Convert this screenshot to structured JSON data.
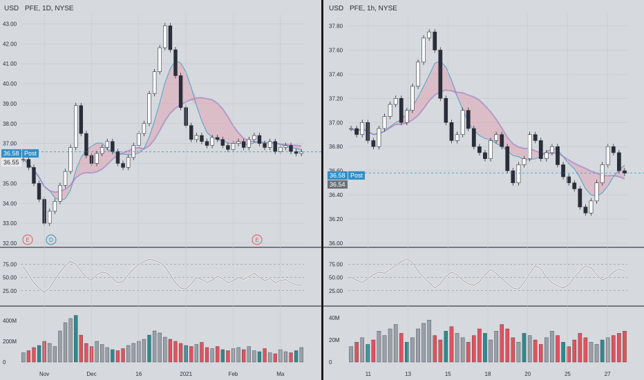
{
  "left": {
    "currency": "USD",
    "symbol": "PFE, 1D, NYSE",
    "price_tags": [
      {
        "text": "36.58",
        "kind": "blue"
      },
      {
        "text": "Post",
        "kind": "blue"
      },
      {
        "text": "36.55",
        "kind": "plain"
      }
    ],
    "x_ticks": [
      "Nov",
      "Dec",
      "16",
      "2021",
      "Feb",
      "Ma"
    ],
    "markers": [
      "E",
      "D",
      "E"
    ]
  },
  "right": {
    "currency": "USD",
    "symbol": "PFE, 1h, NYSE",
    "price_tags": [
      {
        "text": "36.58",
        "kind": "blue"
      },
      {
        "text": "Post",
        "kind": "blue"
      },
      {
        "text": "36.54",
        "kind": "gray"
      }
    ],
    "x_ticks": [
      "11",
      "13",
      "15",
      "18",
      "20",
      "25",
      "27"
    ]
  },
  "chart_data": [
    {
      "type": "candlestick",
      "title": "PFE, 1D, NYSE",
      "ylim": [
        32,
        43.5
      ],
      "y_ticks": [
        "43.00",
        "42.00",
        "41.00",
        "40.00",
        "39.00",
        "38.00",
        "37.00",
        "36.00",
        "35.00",
        "34.00",
        "33.00",
        "32.00"
      ],
      "closes": [
        36.2,
        35.8,
        35.0,
        34.2,
        33.0,
        33.6,
        34.1,
        34.9,
        35.6,
        36.8,
        38.9,
        37.5,
        36.4,
        36.0,
        36.5,
        36.8,
        37.1,
        36.6,
        36.0,
        35.8,
        36.3,
        36.9,
        37.5,
        38.0,
        39.5,
        40.6,
        41.8,
        42.9,
        41.7,
        40.4,
        38.8,
        37.9,
        37.2,
        37.4,
        37.1,
        36.9,
        37.3,
        37.2,
        36.9,
        36.7,
        37.0,
        37.1,
        36.8,
        37.2,
        37.4,
        37.0,
        36.8,
        37.1,
        36.6,
        36.8,
        36.9,
        36.6,
        36.5,
        36.58
      ],
      "oscillator": {
        "y_ticks": [
          "75.00",
          "50.00",
          "25.00"
        ],
        "ylim": [
          0,
          100
        ],
        "values": [
          70,
          55,
          40,
          30,
          22,
          30,
          45,
          60,
          72,
          80,
          75,
          62,
          50,
          45,
          55,
          60,
          58,
          48,
          40,
          42,
          55,
          66,
          74,
          80,
          84,
          82,
          78,
          70,
          55,
          40,
          30,
          28,
          38,
          50,
          46,
          40,
          45,
          52,
          48,
          40,
          44,
          50,
          46,
          52,
          58,
          50,
          44,
          48,
          40,
          44,
          46,
          40,
          36,
          35
        ]
      },
      "volume": {
        "y_ticks": [
          "400M",
          "200M",
          "0"
        ],
        "ylim": [
          0,
          480
        ],
        "values": [
          90,
          110,
          140,
          160,
          200,
          180,
          150,
          300,
          380,
          420,
          450,
          260,
          180,
          150,
          200,
          170,
          140,
          120,
          110,
          130,
          160,
          180,
          200,
          220,
          260,
          300,
          280,
          240,
          220,
          200,
          180,
          160,
          150,
          170,
          190,
          140,
          130,
          150,
          120,
          110,
          130,
          140,
          120,
          150,
          110,
          100,
          130,
          90,
          80,
          120,
          100,
          90,
          110,
          140
        ]
      },
      "x_ticks": [
        "Nov",
        "Dec",
        "16",
        "2021",
        "Feb",
        "Ma"
      ]
    },
    {
      "type": "candlestick",
      "title": "PFE, 1h, NYSE",
      "ylim": [
        36.0,
        37.9
      ],
      "y_ticks": [
        "37.80",
        "37.60",
        "37.40",
        "37.20",
        "37.00",
        "36.80",
        "36.60",
        "36.40",
        "36.20",
        "36.00"
      ],
      "closes": [
        36.95,
        36.9,
        37.0,
        36.85,
        36.8,
        36.95,
        37.05,
        37.15,
        37.2,
        37.0,
        37.1,
        37.3,
        37.5,
        37.7,
        37.75,
        37.6,
        37.2,
        37.0,
        36.85,
        36.9,
        37.1,
        36.95,
        36.8,
        36.75,
        36.7,
        36.85,
        36.9,
        36.8,
        36.6,
        36.5,
        36.65,
        36.7,
        36.9,
        36.85,
        36.7,
        36.75,
        36.8,
        36.65,
        36.55,
        36.5,
        36.45,
        36.3,
        36.25,
        36.35,
        36.5,
        36.65,
        36.8,
        36.75,
        36.6,
        36.58
      ],
      "oscillator": {
        "y_ticks": [
          "75.00",
          "50.00",
          "25.00"
        ],
        "ylim": [
          0,
          100
        ],
        "values": [
          50,
          45,
          40,
          48,
          55,
          60,
          58,
          65,
          72,
          80,
          85,
          78,
          62,
          50,
          40,
          30,
          38,
          52,
          60,
          55,
          45,
          38,
          35,
          42,
          55,
          65,
          58,
          48,
          38,
          30,
          28,
          40,
          58,
          72,
          66,
          50,
          40,
          34,
          30,
          36,
          50,
          62,
          72,
          68,
          55,
          45,
          50,
          60,
          66,
          62
        ]
      },
      "volume": {
        "y_ticks": [
          "40M",
          "20M",
          "0"
        ],
        "ylim": [
          0,
          45
        ],
        "values": [
          14,
          18,
          22,
          16,
          20,
          28,
          24,
          30,
          34,
          26,
          18,
          22,
          30,
          35,
          38,
          24,
          20,
          28,
          32,
          26,
          22,
          18,
          24,
          30,
          26,
          20,
          28,
          34,
          30,
          22,
          18,
          26,
          24,
          20,
          16,
          22,
          28,
          24,
          18,
          14,
          20,
          26,
          22,
          18,
          16,
          20,
          22,
          24,
          26,
          28
        ]
      },
      "x_ticks": [
        "11",
        "13",
        "15",
        "18",
        "20",
        "25",
        "27"
      ]
    }
  ]
}
